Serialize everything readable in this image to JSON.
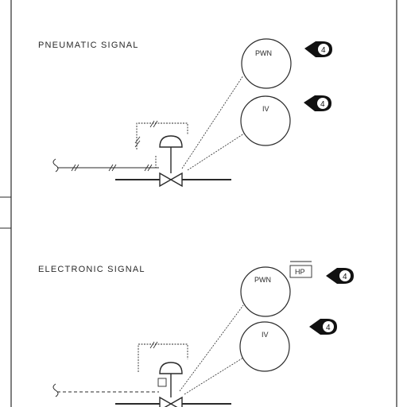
{
  "sections": [
    {
      "label": "PNEUMATIC SIGNAL",
      "signal_style": "pneumatic",
      "bubbles": [
        {
          "text": "PWN",
          "tag": "4"
        },
        {
          "text": "IV",
          "tag": "4"
        }
      ],
      "box_label": ""
    },
    {
      "label": "ELECTRONIC SIGNAL",
      "signal_style": "electronic",
      "bubbles": [
        {
          "text": "PWN",
          "tag": "4"
        },
        {
          "text": "IV",
          "tag": "4"
        }
      ],
      "box_label": "HP"
    }
  ],
  "colors": {
    "line": "#2a2a2a",
    "background": "#ffffff",
    "tag_fill": "#111111"
  }
}
